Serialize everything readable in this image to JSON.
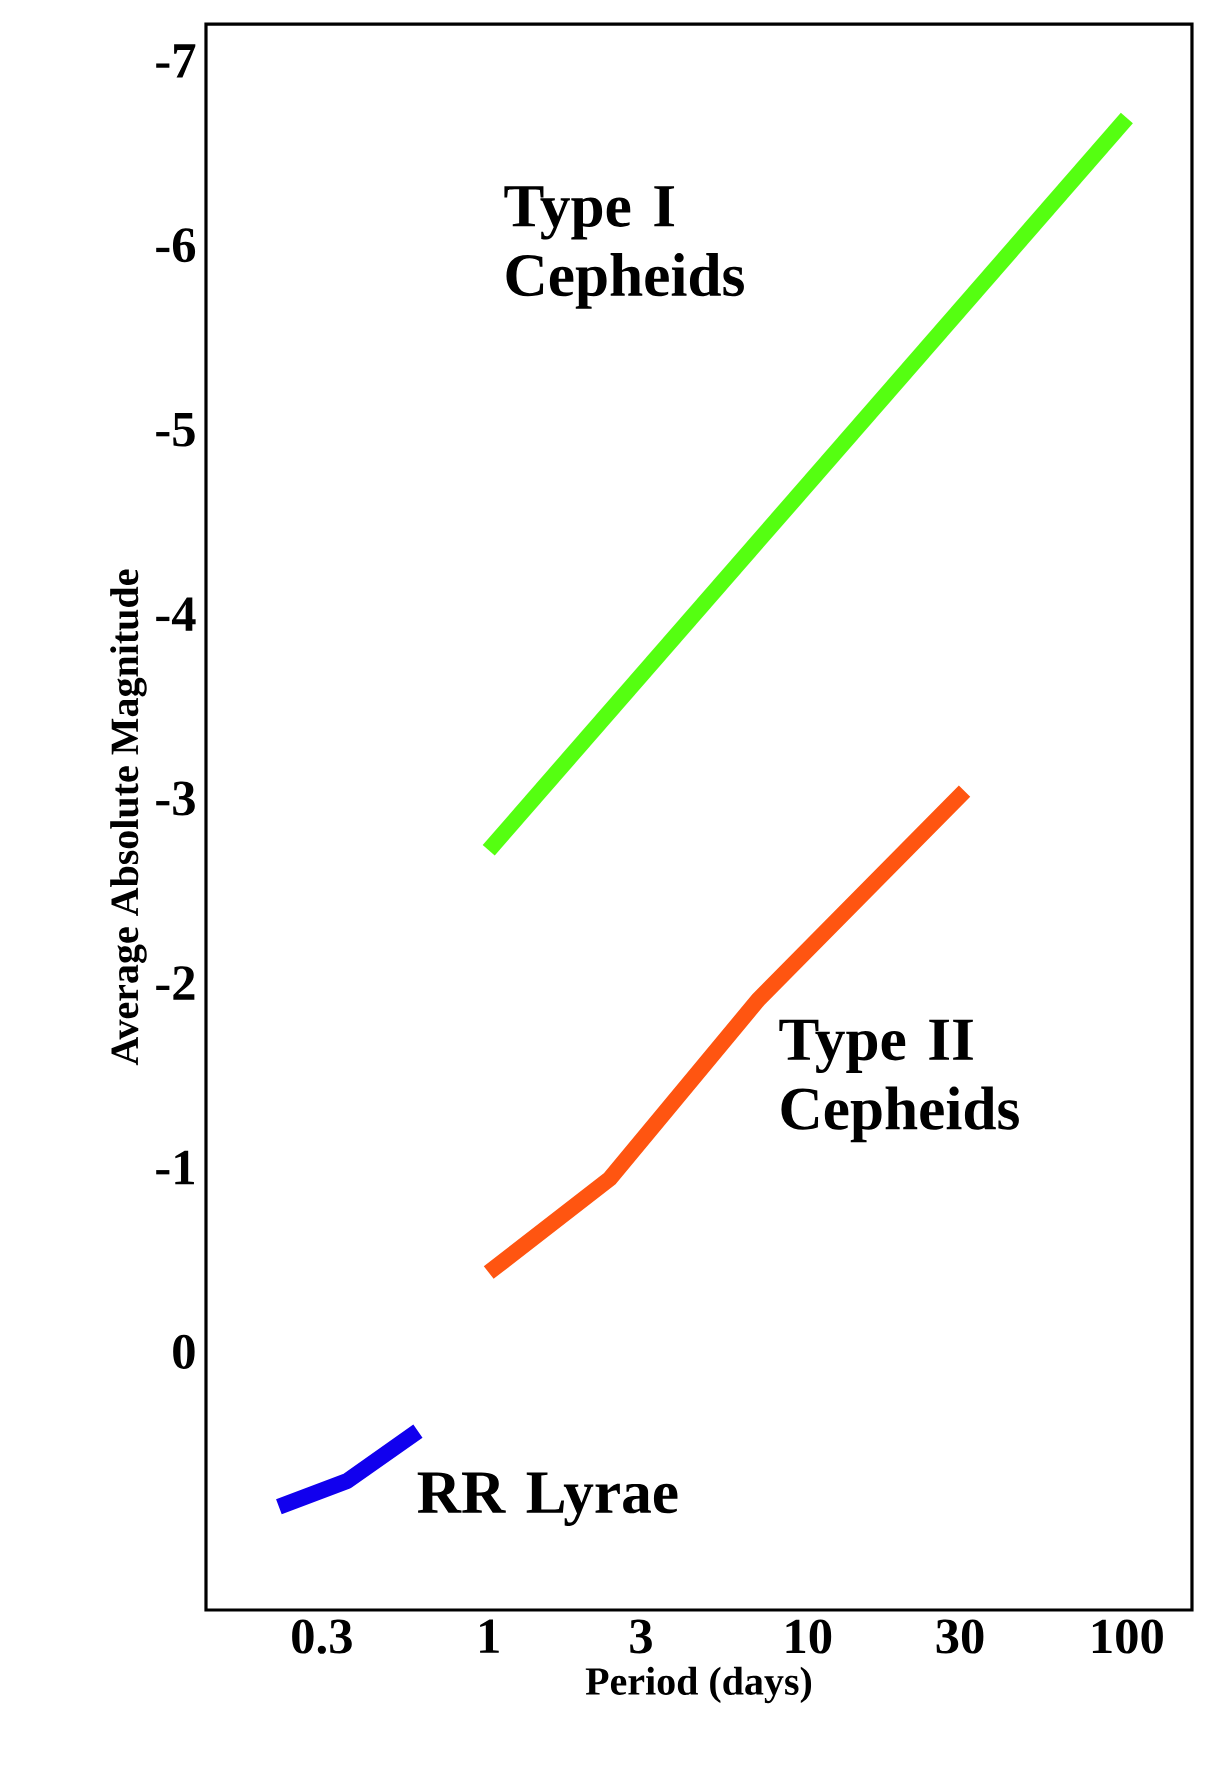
{
  "chart_data": {
    "type": "line",
    "xlabel": "Period (days)",
    "ylabel": "Average Absolute Magnitude",
    "log": "x",
    "xlim": [
      0.13,
      160
    ],
    "ylim": [
      1.4,
      -7.2
    ],
    "xticks": [
      0.3,
      1,
      3,
      10,
      30,
      100
    ],
    "yticks": [
      -7,
      -6,
      -5,
      -4,
      -3,
      -2,
      -1,
      0
    ],
    "series": [
      {
        "name": "Type I Cepheids",
        "color": "#55ff11",
        "x": [
          1,
          100
        ],
        "values": [
          -2.72,
          -6.69
        ]
      },
      {
        "name": "Type II Cepheids",
        "color": "#ff5511",
        "x": [
          1,
          2.4,
          7,
          31
        ],
        "values": [
          -0.43,
          -0.94,
          -1.91,
          -3.04
        ]
      },
      {
        "name": "RR Lyrae",
        "color": "#1100ee",
        "x": [
          0.22,
          0.36,
          0.6
        ],
        "values": [
          0.84,
          0.7,
          0.43
        ]
      }
    ],
    "grid": false,
    "legend": false,
    "marker": "none",
    "line_style": "solid"
  }
}
